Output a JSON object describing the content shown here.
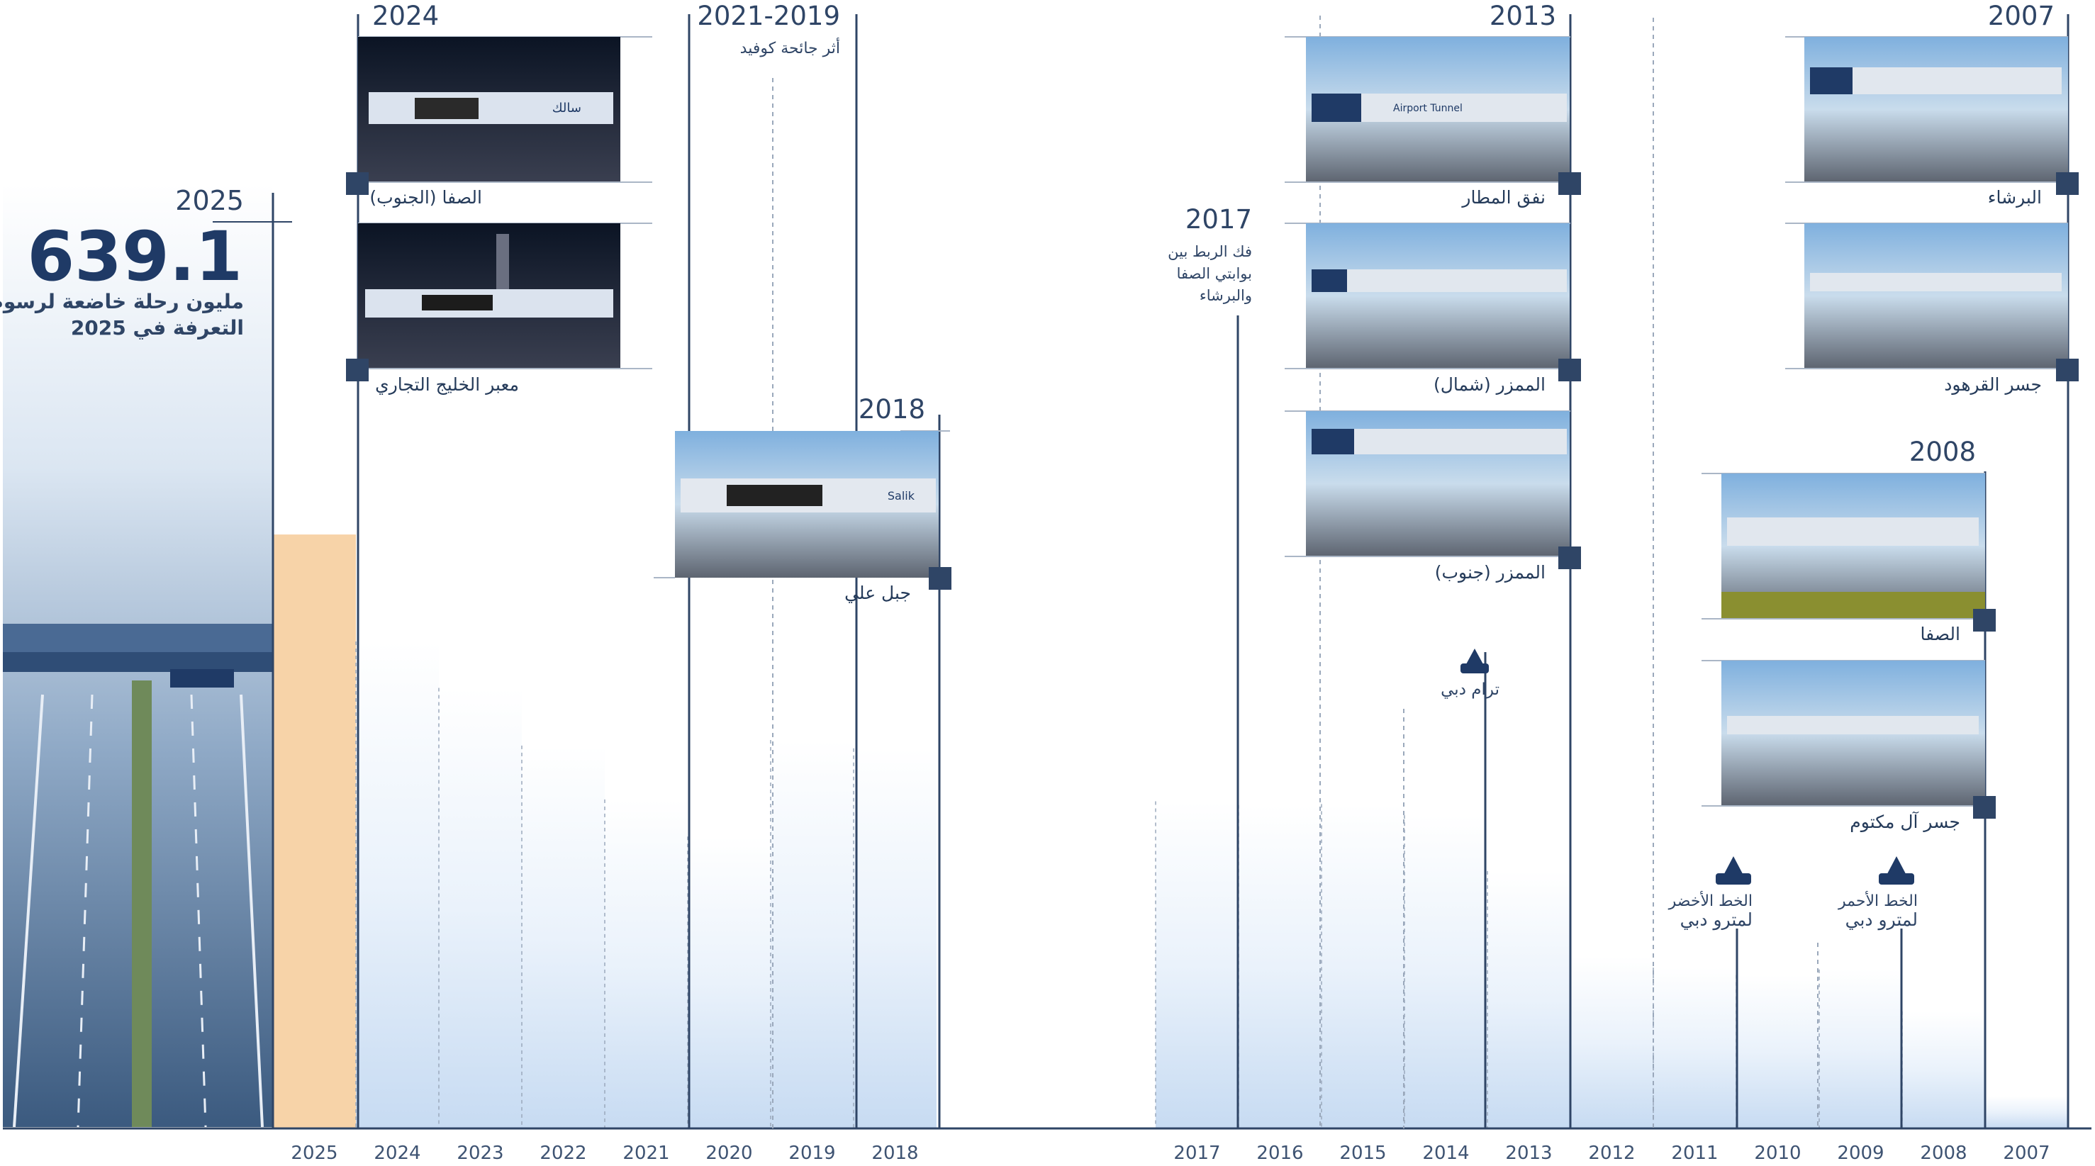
{
  "hero": {
    "year": "2025",
    "value": "639.1",
    "caption_line1": "مليون رحلة خاضعة لرسوم",
    "caption_line2": "التعرفة في 2025"
  },
  "chart_data": {
    "type": "bar",
    "title": "",
    "xlabel": "",
    "ylabel": "",
    "categories": [
      "2025",
      "2024",
      "2023",
      "2022",
      "2021",
      "2020",
      "2019",
      "2018",
      "2017",
      "2016",
      "2015",
      "2014",
      "2013",
      "2012",
      "2011",
      "2010",
      "2009",
      "2008",
      "2007"
    ],
    "values": [
      639.1,
      524,
      474,
      412,
      354,
      314,
      418,
      409,
      352,
      348,
      349,
      337,
      277,
      185,
      173,
      165,
      171,
      126,
      35
    ],
    "highlight_category": "2025",
    "ylim": [
      0,
      900
    ],
    "grid": false,
    "axis_break_after": "2018"
  },
  "milestones": [
    {
      "year": "2024",
      "photos": [
        {
          "label": "الصفا (الجنوب)"
        },
        {
          "label": "معبر الخليج التجاري"
        }
      ]
    },
    {
      "year": "2021-2019",
      "note": "أثر جائحة كوفيد"
    },
    {
      "year": "2018",
      "photos": [
        {
          "label": "جبل علي"
        }
      ]
    },
    {
      "year": "2017",
      "note_lines": [
        "فك الربط بين",
        "بوابتي الصفا",
        "والبرشاء"
      ]
    },
    {
      "year": "2013",
      "photos": [
        {
          "label": "نفق المطار"
        },
        {
          "label": "الممزر (شمال)"
        },
        {
          "label": "الممزر (جنوب)"
        }
      ]
    },
    {
      "year": "2008",
      "photos": [
        {
          "label": "الصفا"
        },
        {
          "label": "جسر آل مكتوم"
        }
      ]
    },
    {
      "year": "2007",
      "photos": [
        {
          "label": "البرشاء"
        },
        {
          "label": "جسر القرهود"
        }
      ]
    }
  ],
  "transit_events": [
    {
      "label": "ترام دبي"
    },
    {
      "label_line1": "الخط الأخضر",
      "label_line2": "لمترو دبي"
    },
    {
      "label_line1": "الخط الأحمر",
      "label_line2": "لمترو دبي"
    }
  ],
  "signs": {
    "airport_tunnel": "Airport Tunnel",
    "salik_ar": "سالك",
    "salik_en": "Salik"
  },
  "colors": {
    "bar": "#c7dbf2",
    "bar_highlight": "#f7d3a8",
    "axis": "#2f4566",
    "navy": "#1f3a66"
  },
  "icons": [
    "toll-gate-icon",
    "tram-icon",
    "metro-icon"
  ]
}
